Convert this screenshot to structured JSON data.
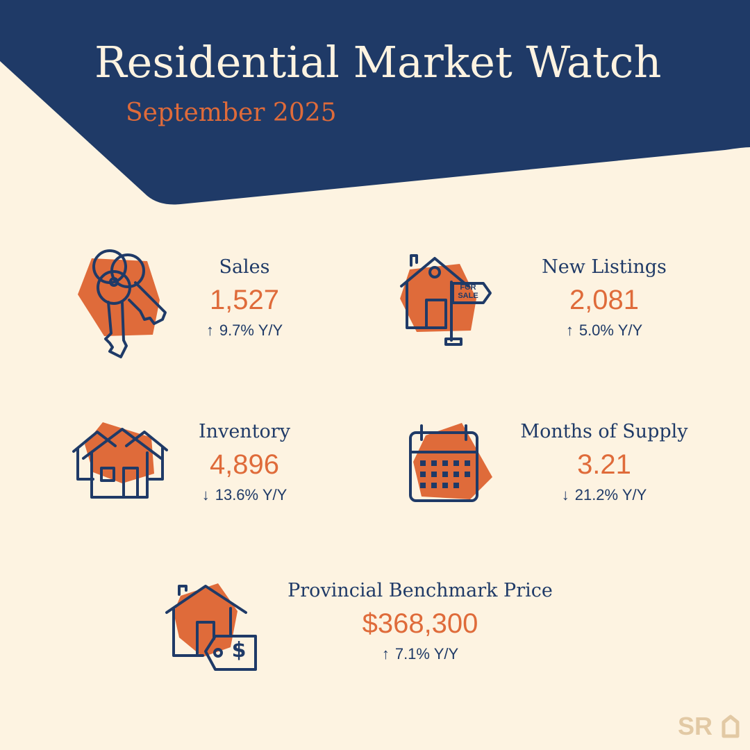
{
  "header": {
    "title": "Residential Market Watch",
    "subtitle": "September 2025"
  },
  "colors": {
    "navy": "#1f3a67",
    "orange": "#df6b3a",
    "cream": "#fdf3e1",
    "logo_tan": "#e2c9a4"
  },
  "stats": {
    "sales": {
      "label": "Sales",
      "value": "1,527",
      "arrow": "↑",
      "change": "9.7% Y/Y",
      "icon": "keys-icon"
    },
    "new_listings": {
      "label": "New Listings",
      "value": "2,081",
      "arrow": "↑",
      "change": "5.0% Y/Y",
      "icon": "for-sale-house-icon",
      "sign_text": [
        "FOR",
        "SALE"
      ]
    },
    "inventory": {
      "label": "Inventory",
      "value": "4,896",
      "arrow": "↓",
      "change": "13.6% Y/Y",
      "icon": "houses-icon"
    },
    "months_of_supply": {
      "label": "Months of Supply",
      "value": "3.21",
      "arrow": "↓",
      "change": "21.2% Y/Y",
      "icon": "calendar-icon"
    },
    "benchmark_price": {
      "label": "Provincial Benchmark Price",
      "value": "$368,300",
      "arrow": "↑",
      "change": "7.1% Y/Y",
      "icon": "house-price-tag-icon",
      "tag_text": "$"
    }
  },
  "logo": {
    "text": "SR"
  }
}
